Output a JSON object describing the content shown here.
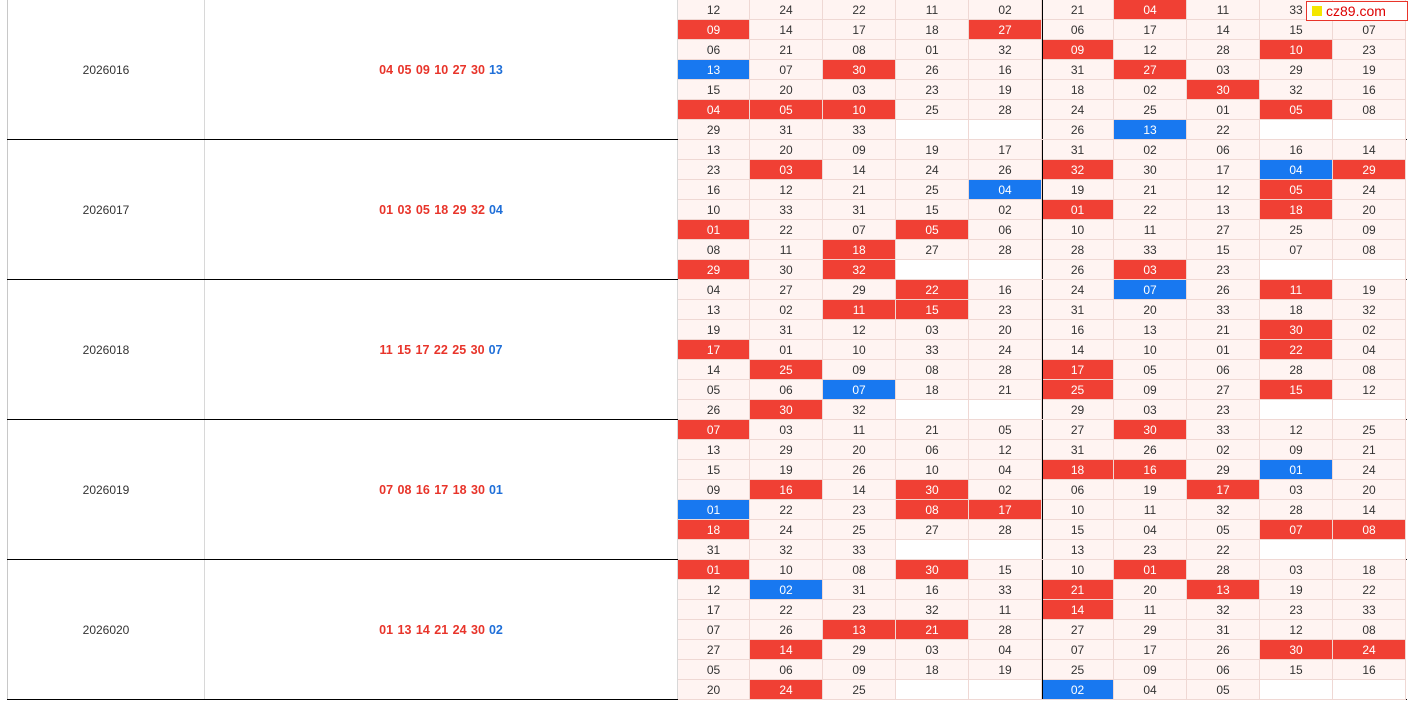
{
  "watermark": "cz89.com",
  "colors": {
    "red": "#f04034",
    "blue": "#1878f0",
    "cell_bg": "#fff4f2"
  },
  "periods": [
    {
      "issue": "2026016",
      "red_balls": "04 05 09 10 27 30",
      "blue_ball": "13",
      "left_grid": [
        [
          "12",
          "24",
          "22",
          "11",
          "02"
        ],
        [
          "09",
          "14",
          "17",
          "18",
          "27"
        ],
        [
          "06",
          "21",
          "08",
          "01",
          "32"
        ],
        [
          "13",
          "07",
          "30",
          "26",
          "16"
        ],
        [
          "15",
          "20",
          "03",
          "23",
          "19"
        ],
        [
          "04",
          "05",
          "10",
          "25",
          "28"
        ],
        [
          "29",
          "31",
          "33",
          "",
          ""
        ]
      ],
      "right_grid": [
        [
          "21",
          "04",
          "11",
          "33",
          "15"
        ],
        [
          "06",
          "17",
          "14",
          "15",
          "07"
        ],
        [
          "09",
          "12",
          "28",
          "10",
          "23"
        ],
        [
          "31",
          "27",
          "03",
          "29",
          "19"
        ],
        [
          "18",
          "02",
          "30",
          "32",
          "16"
        ],
        [
          "24",
          "25",
          "01",
          "05",
          "08"
        ],
        [
          "26",
          "13",
          "22",
          "",
          ""
        ]
      ]
    },
    {
      "issue": "2026017",
      "red_balls": "01 03 05 18 29 32",
      "blue_ball": "04",
      "left_grid": [
        [
          "13",
          "20",
          "09",
          "19",
          "17"
        ],
        [
          "23",
          "03",
          "14",
          "24",
          "26"
        ],
        [
          "16",
          "12",
          "21",
          "25",
          "04"
        ],
        [
          "10",
          "33",
          "31",
          "15",
          "02"
        ],
        [
          "01",
          "22",
          "07",
          "05",
          "06"
        ],
        [
          "08",
          "11",
          "18",
          "27",
          "28"
        ],
        [
          "29",
          "30",
          "32",
          "",
          ""
        ]
      ],
      "right_grid": [
        [
          "31",
          "02",
          "06",
          "16",
          "14"
        ],
        [
          "32",
          "30",
          "17",
          "04",
          "29"
        ],
        [
          "19",
          "21",
          "12",
          "05",
          "24"
        ],
        [
          "01",
          "22",
          "13",
          "18",
          "20"
        ],
        [
          "10",
          "11",
          "27",
          "25",
          "09"
        ],
        [
          "28",
          "33",
          "15",
          "07",
          "08"
        ],
        [
          "26",
          "03",
          "23",
          "",
          ""
        ]
      ]
    },
    {
      "issue": "2026018",
      "red_balls": "11 15 17 22 25 30",
      "blue_ball": "07",
      "left_grid": [
        [
          "04",
          "27",
          "29",
          "22",
          "16"
        ],
        [
          "13",
          "02",
          "11",
          "15",
          "23"
        ],
        [
          "19",
          "31",
          "12",
          "03",
          "20"
        ],
        [
          "17",
          "01",
          "10",
          "33",
          "24"
        ],
        [
          "14",
          "25",
          "09",
          "08",
          "28"
        ],
        [
          "05",
          "06",
          "07",
          "18",
          "21"
        ],
        [
          "26",
          "30",
          "32",
          "",
          ""
        ]
      ],
      "right_grid": [
        [
          "24",
          "07",
          "26",
          "11",
          "19"
        ],
        [
          "31",
          "20",
          "33",
          "18",
          "32"
        ],
        [
          "16",
          "13",
          "21",
          "30",
          "02"
        ],
        [
          "14",
          "10",
          "01",
          "22",
          "04"
        ],
        [
          "17",
          "05",
          "06",
          "28",
          "08"
        ],
        [
          "25",
          "09",
          "27",
          "15",
          "12"
        ],
        [
          "29",
          "03",
          "23",
          "",
          ""
        ]
      ]
    },
    {
      "issue": "2026019",
      "red_balls": "07 08 16 17 18 30",
      "blue_ball": "01",
      "left_grid": [
        [
          "07",
          "03",
          "11",
          "21",
          "05"
        ],
        [
          "13",
          "29",
          "20",
          "06",
          "12"
        ],
        [
          "15",
          "19",
          "26",
          "10",
          "04"
        ],
        [
          "09",
          "16",
          "14",
          "30",
          "02"
        ],
        [
          "01",
          "22",
          "23",
          "08",
          "17"
        ],
        [
          "18",
          "24",
          "25",
          "27",
          "28"
        ],
        [
          "31",
          "32",
          "33",
          "",
          ""
        ]
      ],
      "right_grid": [
        [
          "27",
          "30",
          "33",
          "12",
          "25"
        ],
        [
          "31",
          "26",
          "02",
          "09",
          "21"
        ],
        [
          "18",
          "16",
          "29",
          "01",
          "24"
        ],
        [
          "06",
          "19",
          "17",
          "03",
          "20"
        ],
        [
          "10",
          "11",
          "32",
          "28",
          "14"
        ],
        [
          "15",
          "04",
          "05",
          "07",
          "08"
        ],
        [
          "13",
          "23",
          "22",
          "",
          ""
        ]
      ]
    },
    {
      "issue": "2026020",
      "red_balls": "01 13 14 21 24 30",
      "blue_ball": "02",
      "left_grid": [
        [
          "01",
          "10",
          "08",
          "30",
          "15"
        ],
        [
          "12",
          "02",
          "31",
          "16",
          "33"
        ],
        [
          "17",
          "22",
          "23",
          "32",
          "11"
        ],
        [
          "07",
          "26",
          "13",
          "21",
          "28"
        ],
        [
          "27",
          "14",
          "29",
          "03",
          "04"
        ],
        [
          "05",
          "06",
          "09",
          "18",
          "19"
        ],
        [
          "20",
          "24",
          "25",
          "",
          ""
        ]
      ],
      "right_grid": [
        [
          "10",
          "01",
          "28",
          "03",
          "18"
        ],
        [
          "21",
          "20",
          "13",
          "19",
          "22"
        ],
        [
          "14",
          "11",
          "32",
          "23",
          "33"
        ],
        [
          "27",
          "29",
          "31",
          "12",
          "08"
        ],
        [
          "07",
          "17",
          "26",
          "30",
          "24"
        ],
        [
          "25",
          "09",
          "06",
          "15",
          "16"
        ],
        [
          "02",
          "04",
          "05",
          "",
          ""
        ]
      ]
    }
  ]
}
